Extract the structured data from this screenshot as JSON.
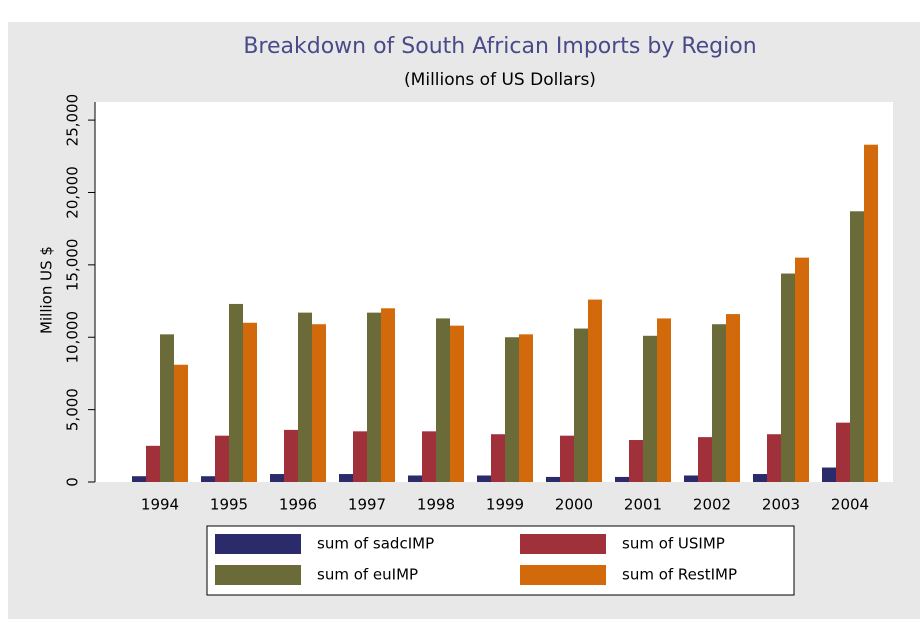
{
  "chart_data": {
    "type": "bar",
    "title": "Breakdown of South African Imports by Region",
    "subtitle": "(Millions of US Dollars)",
    "y_label": "Million US $",
    "categories": [
      "1994",
      "1995",
      "1996",
      "1997",
      "1998",
      "1999",
      "2000",
      "2001",
      "2002",
      "2003",
      "2004"
    ],
    "series": [
      {
        "name": "sum of sadcIMP",
        "color": "#2b2a6b",
        "values": [
          400,
          400,
          550,
          550,
          450,
          450,
          350,
          350,
          450,
          550,
          1000
        ]
      },
      {
        "name": "sum of USIMP",
        "color": "#a0303a",
        "values": [
          2500,
          3200,
          3600,
          3500,
          3500,
          3300,
          3200,
          2900,
          3100,
          3300,
          4100
        ]
      },
      {
        "name": "sum of euIMP",
        "color": "#6b6b3a",
        "values": [
          10200,
          12300,
          11700,
          11700,
          11300,
          10000,
          10600,
          10100,
          10900,
          14400,
          18700
        ]
      },
      {
        "name": "sum of RestIMP",
        "color": "#d2690a",
        "values": [
          8100,
          11000,
          10900,
          12000,
          10800,
          10200,
          12600,
          11300,
          11600,
          15500,
          23300
        ]
      }
    ],
    "ylim": [
      0,
      26250
    ],
    "yticks": [
      0,
      {
        "value": 5000,
        "label": "5,000"
      },
      {
        "value": 10000,
        "label": "10,000"
      },
      {
        "value": 15000,
        "label": "15,000"
      },
      {
        "value": 20000,
        "label": "20,000"
      },
      {
        "value": 25000,
        "label": "25,000"
      }
    ]
  }
}
